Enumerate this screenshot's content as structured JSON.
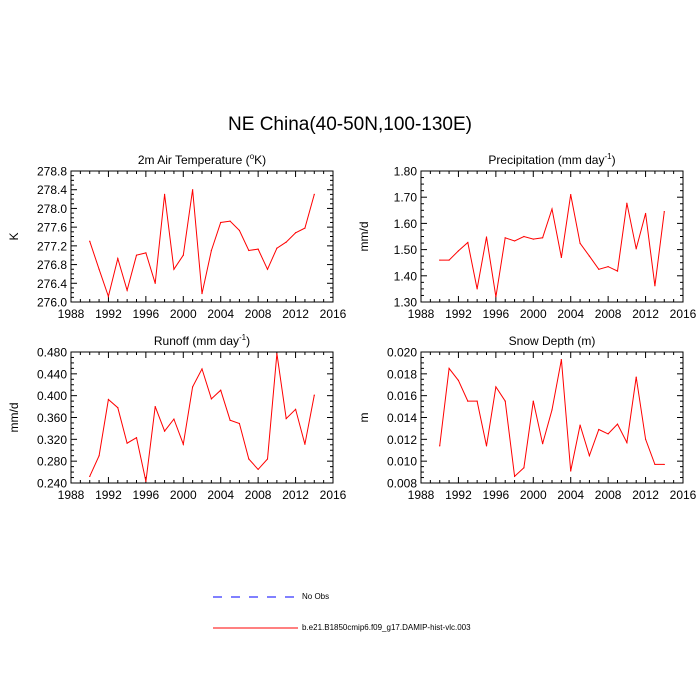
{
  "title": "NE China(40-50N,100-130E)",
  "colors": {
    "model": "#ff0000",
    "obs": "#0000ff",
    "axis": "#000000"
  },
  "legend": {
    "obs_label": "No Obs",
    "model_label": "b.e21.B1850cmip6.f09_g17.DAMIP-hist-vlc.003"
  },
  "chart_data": [
    {
      "type": "line",
      "title_main": "2m Air Temperature (",
      "title_sup": "o",
      "title_tail": "K)",
      "ylabel": "K",
      "xlim": [
        1988,
        2016
      ],
      "ylim": [
        276.0,
        278.8
      ],
      "xticks": [
        1988,
        1992,
        1996,
        2000,
        2004,
        2008,
        2012,
        2016
      ],
      "yticks": [
        "276.0",
        "276.4",
        "276.8",
        "277.2",
        "277.6",
        "278.0",
        "278.4",
        "278.8"
      ],
      "x": [
        1990,
        1991,
        1992,
        1993,
        1994,
        1995,
        1996,
        1997,
        1998,
        1999,
        2000,
        2001,
        2002,
        2003,
        2004,
        2005,
        2006,
        2007,
        2008,
        2009,
        2010,
        2011,
        2012,
        2013,
        2014
      ],
      "series": [
        {
          "name": "b.e21.B1850cmip6.f09_g17.DAMIP-hist-vlc.003",
          "values": [
            277.3,
            276.7,
            276.12,
            276.93,
            276.25,
            277.0,
            277.05,
            276.4,
            278.3,
            276.7,
            277.0,
            278.4,
            276.18,
            277.1,
            277.7,
            277.73,
            277.53,
            277.1,
            277.13,
            276.7,
            277.15,
            277.28,
            277.48,
            277.58,
            278.3
          ]
        }
      ]
    },
    {
      "type": "line",
      "title_main": "Precipitation (mm day",
      "title_sup": "-1",
      "title_tail": ")",
      "ylabel": "mm/d",
      "xlim": [
        1988,
        2016
      ],
      "ylim": [
        1.3,
        1.8
      ],
      "xticks": [
        1988,
        1992,
        1996,
        2000,
        2004,
        2008,
        2012,
        2016
      ],
      "yticks": [
        "1.30",
        "1.40",
        "1.50",
        "1.60",
        "1.70",
        "1.80"
      ],
      "x": [
        1990,
        1991,
        1992,
        1993,
        1994,
        1995,
        1996,
        1997,
        1998,
        1999,
        2000,
        2001,
        2002,
        2003,
        2004,
        2005,
        2006,
        2007,
        2008,
        2009,
        2010,
        2011,
        2012,
        2013,
        2014
      ],
      "series": [
        {
          "name": "b.e21.B1850cmip6.f09_g17.DAMIP-hist-vlc.003",
          "values": [
            1.46,
            1.46,
            1.495,
            1.527,
            1.35,
            1.548,
            1.32,
            1.545,
            1.533,
            1.55,
            1.54,
            1.545,
            1.655,
            1.47,
            1.71,
            1.524,
            1.475,
            1.425,
            1.435,
            1.418,
            1.677,
            1.503,
            1.638,
            1.362,
            1.645
          ]
        }
      ]
    },
    {
      "type": "line",
      "title_main": "Runoff (mm day",
      "title_sup": "-1",
      "title_tail": ")",
      "ylabel": "mm/d",
      "xlim": [
        1988,
        2016
      ],
      "ylim": [
        0.24,
        0.48
      ],
      "xticks": [
        1988,
        1992,
        1996,
        2000,
        2004,
        2008,
        2012,
        2016
      ],
      "yticks": [
        "0.240",
        "0.280",
        "0.320",
        "0.360",
        "0.400",
        "0.440",
        "0.480"
      ],
      "x": [
        1990,
        1991,
        1992,
        1993,
        1994,
        1995,
        1996,
        1997,
        1998,
        1999,
        2000,
        2001,
        2002,
        2003,
        2004,
        2005,
        2006,
        2007,
        2008,
        2009,
        2010,
        2011,
        2012,
        2013,
        2014
      ],
      "series": [
        {
          "name": "b.e21.B1850cmip6.f09_g17.DAMIP-hist-vlc.003",
          "values": [
            0.252,
            0.29,
            0.393,
            0.378,
            0.313,
            0.323,
            0.243,
            0.38,
            0.335,
            0.357,
            0.311,
            0.416,
            0.449,
            0.394,
            0.41,
            0.355,
            0.349,
            0.284,
            0.265,
            0.284,
            0.477,
            0.358,
            0.375,
            0.311,
            0.401
          ]
        }
      ]
    },
    {
      "type": "line",
      "title_main": "Snow Depth (m)",
      "title_sup": "",
      "title_tail": "",
      "ylabel": "m",
      "xlim": [
        1988,
        2016
      ],
      "ylim": [
        0.008,
        0.02
      ],
      "xticks": [
        1988,
        1992,
        1996,
        2000,
        2004,
        2008,
        2012,
        2016
      ],
      "yticks": [
        "0.008",
        "0.010",
        "0.012",
        "0.014",
        "0.016",
        "0.018",
        "0.020"
      ],
      "x": [
        1990,
        1991,
        1992,
        1993,
        1994,
        1995,
        1996,
        1997,
        1998,
        1999,
        2000,
        2001,
        2002,
        2003,
        2004,
        2005,
        2006,
        2007,
        2008,
        2009,
        2010,
        2011,
        2012,
        2013,
        2014
      ],
      "series": [
        {
          "name": "b.e21.B1850cmip6.f09_g17.DAMIP-hist-vlc.003",
          "values": [
            0.0114,
            0.0185,
            0.0174,
            0.0155,
            0.0155,
            0.0114,
            0.0168,
            0.0155,
            0.0086,
            0.0094,
            0.0155,
            0.0116,
            0.0147,
            0.0193,
            0.0091,
            0.0133,
            0.0105,
            0.0129,
            0.0125,
            0.0134,
            0.0117,
            0.0177,
            0.012,
            0.0097,
            0.0097
          ]
        }
      ]
    }
  ]
}
